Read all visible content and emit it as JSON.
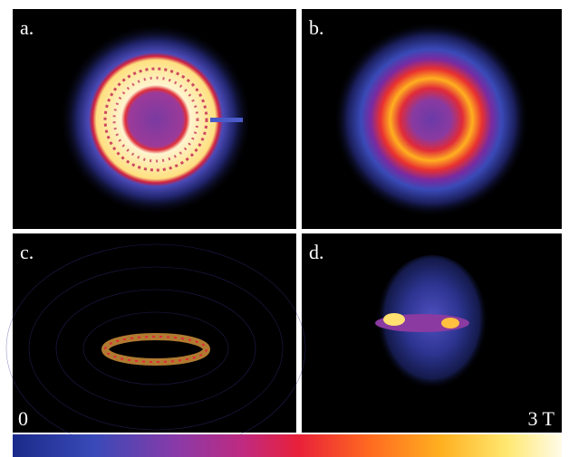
{
  "panels": [
    {
      "label": "a."
    },
    {
      "label": "b."
    },
    {
      "label": "c."
    },
    {
      "label": "d."
    }
  ],
  "colorbar": {
    "min_label": "0",
    "max_label": "3 T"
  }
}
